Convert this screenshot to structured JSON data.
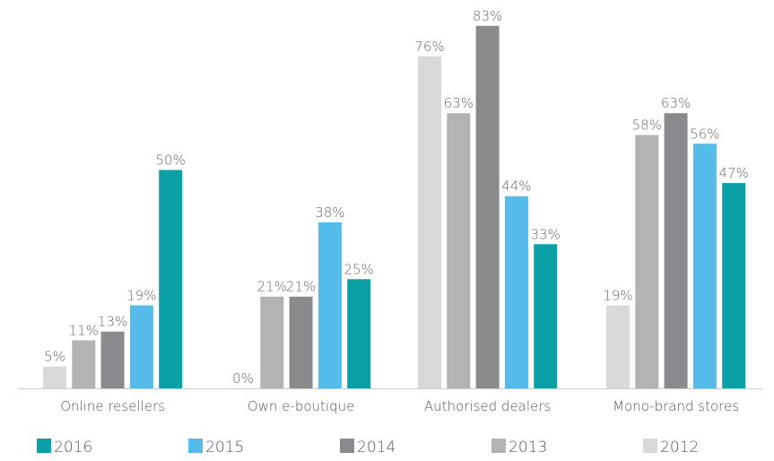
{
  "chart_data": {
    "type": "bar",
    "categories": [
      "Online resellers",
      "Own e-boutique",
      "Authorised dealers",
      "Mono-brand stores"
    ],
    "series": [
      {
        "name": "2012",
        "color": "#d9d9d8",
        "values": [
          5,
          0,
          76,
          19
        ],
        "value_labels": [
          "5%",
          "0%",
          "76%",
          "19%"
        ]
      },
      {
        "name": "2013",
        "color": "#b2b4b4",
        "values": [
          11,
          21,
          63,
          58
        ],
        "value_labels": [
          "11%",
          "21%",
          "63%",
          "58%"
        ]
      },
      {
        "name": "2014",
        "color": "#898a8e",
        "values": [
          13,
          21,
          83,
          63
        ],
        "value_labels": [
          "13%",
          "21%",
          "83%",
          "63%"
        ]
      },
      {
        "name": "2015",
        "color": "#55bce9",
        "values": [
          19,
          38,
          44,
          56
        ],
        "value_labels": [
          "19%",
          "38%",
          "44%",
          "56%"
        ]
      },
      {
        "name": "2016",
        "color": "#0aa0a6",
        "values": [
          50,
          25,
          33,
          47
        ],
        "value_labels": [
          "50%",
          "25%",
          "33%",
          "47%"
        ]
      }
    ]
  }
}
